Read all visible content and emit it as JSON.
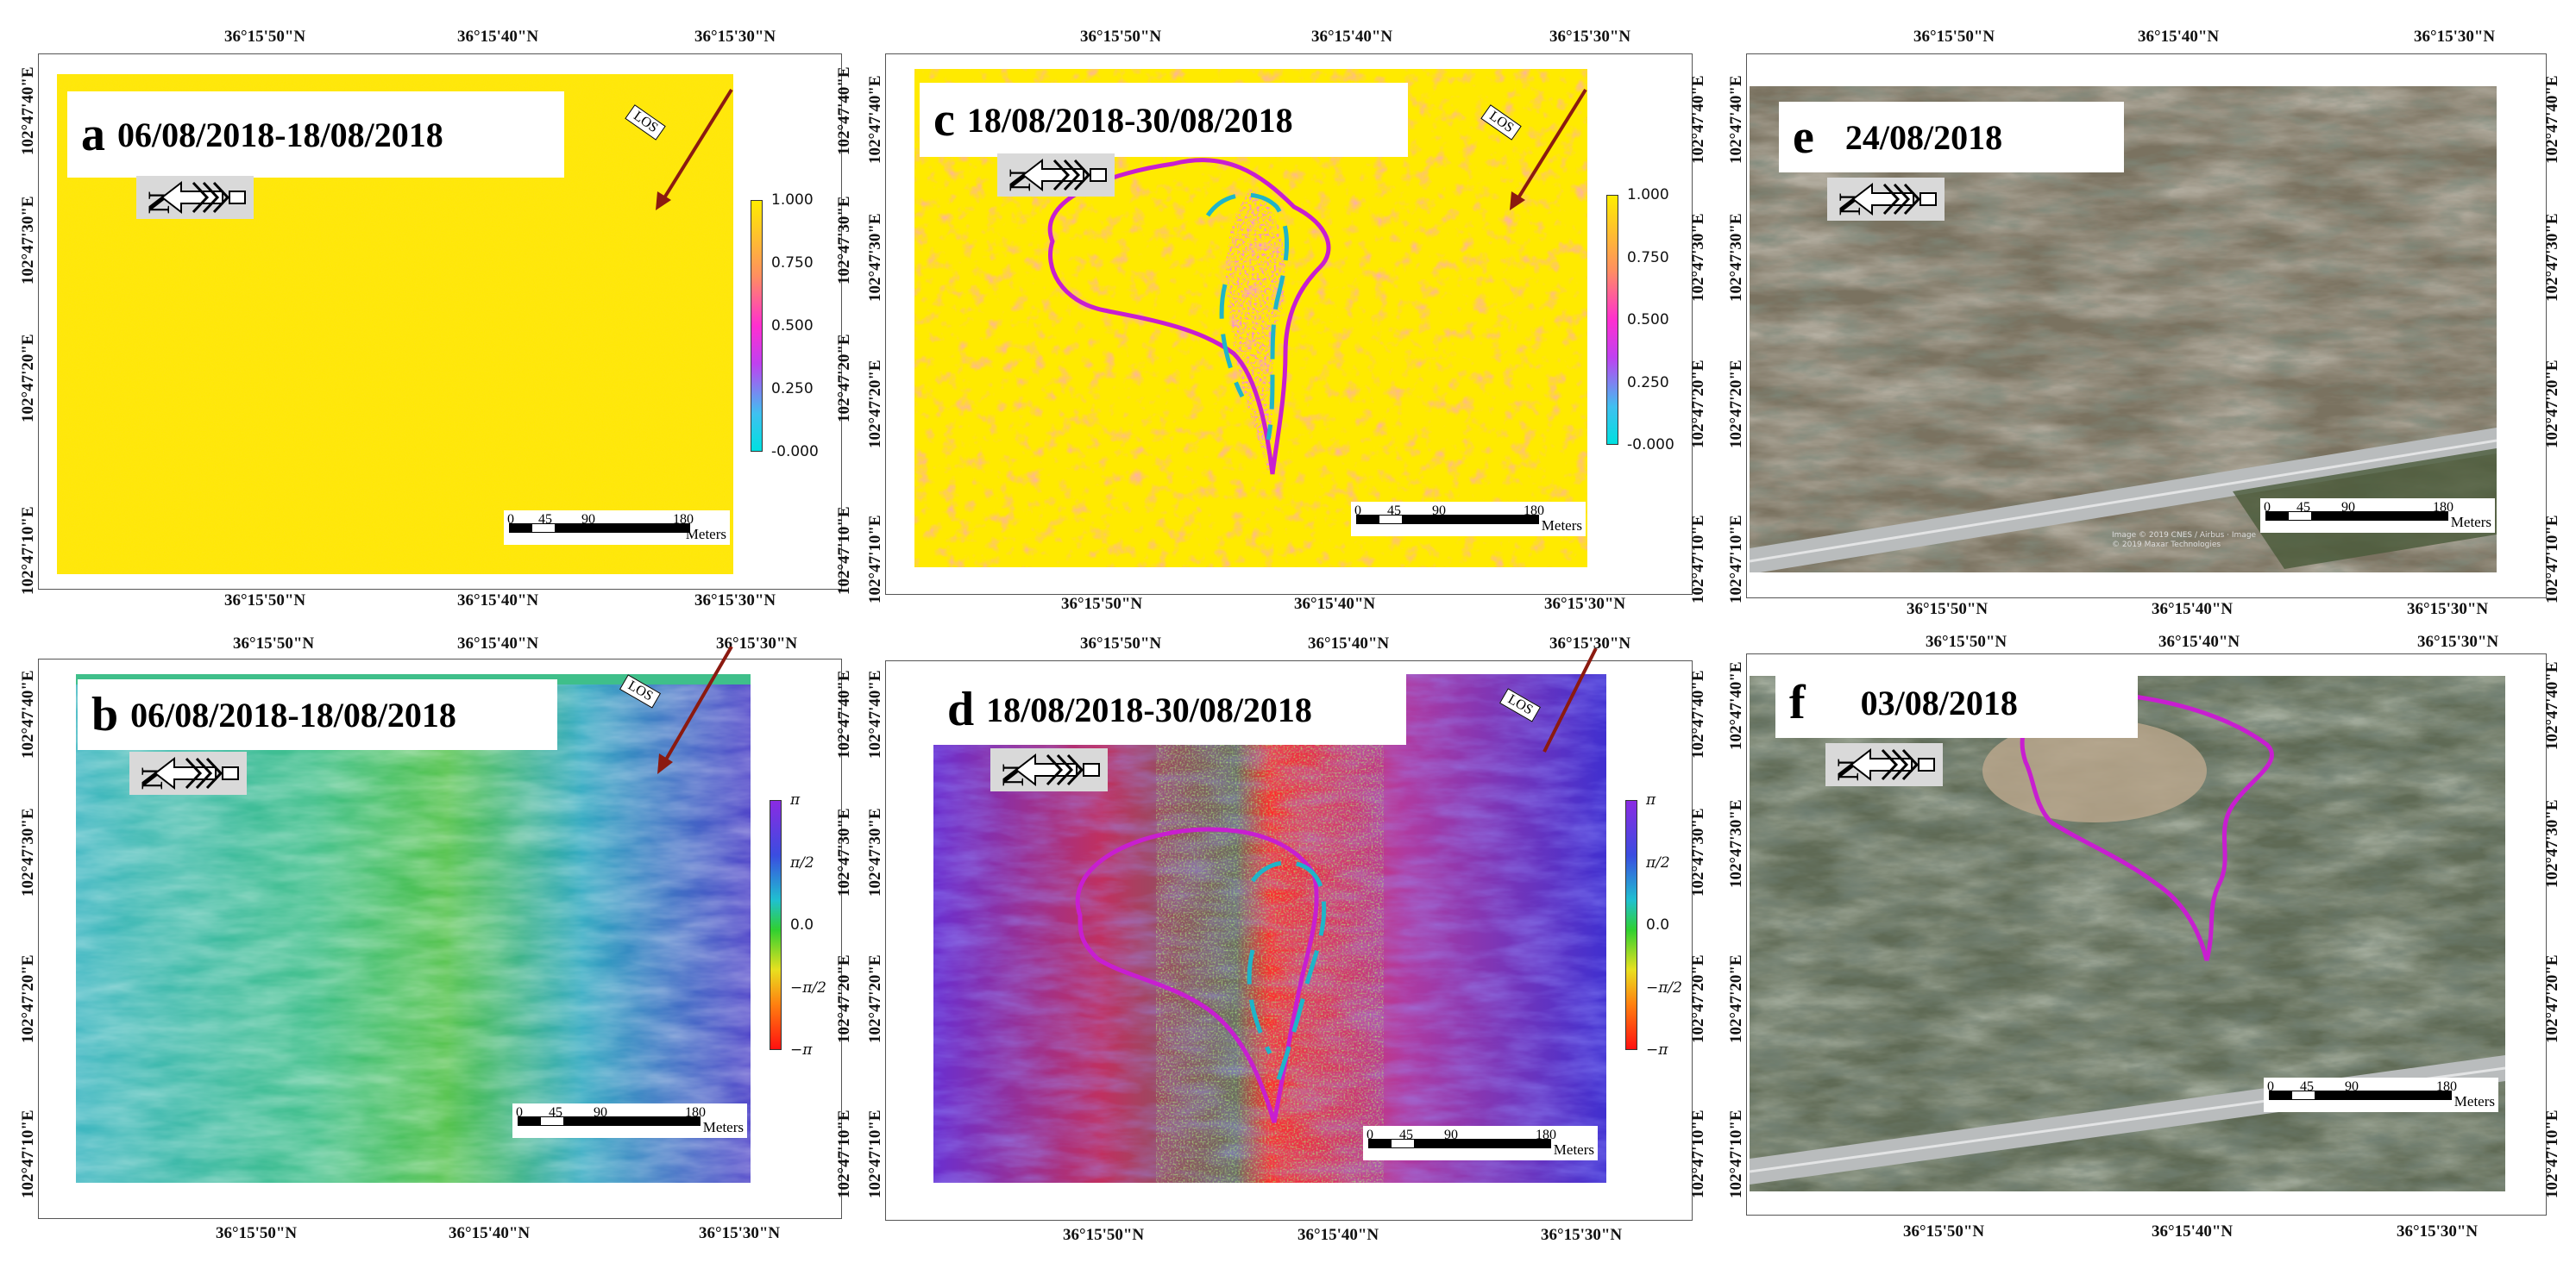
{
  "panels": [
    {
      "letter": "a",
      "date": "06/08/2018-18/08/2018"
    },
    {
      "letter": "b",
      "date": "06/08/2018-18/08/2018"
    },
    {
      "letter": "c",
      "date": "18/08/2018-30/08/2018"
    },
    {
      "letter": "d",
      "date": "18/08/2018-30/08/2018"
    },
    {
      "letter": "e",
      "date": "24/08/2018"
    },
    {
      "letter": "f",
      "date": "03/08/2018"
    }
  ],
  "lat_labels": [
    "36°15'50\"N",
    "36°15'40\"N",
    "36°15'30\"N"
  ],
  "lon_labels": [
    "102°47'40\"E",
    "102°47'30\"E",
    "102°47'20\"E",
    "102°47'10\"E"
  ],
  "scale_ticks": [
    "0",
    "45",
    "90",
    "180"
  ],
  "scale_unit": "Meters",
  "los_label": "LOS",
  "coherence_colorbar": [
    "1.000",
    "0.750",
    "0.500",
    "0.250",
    "-0.000"
  ],
  "phase_colorbar": [
    "π",
    "π/2",
    "0.0",
    "−π/2",
    "−π"
  ],
  "credit_text": "Image © 2019 CNES / Airbus · Image © 2019 Maxar Technologies",
  "colors": {
    "coherence_high": "#ffec00",
    "boundary_magenta": "#c81ed0",
    "boundary_cyan": "#1fb4c8",
    "los_arrow": "#8b1a10"
  }
}
